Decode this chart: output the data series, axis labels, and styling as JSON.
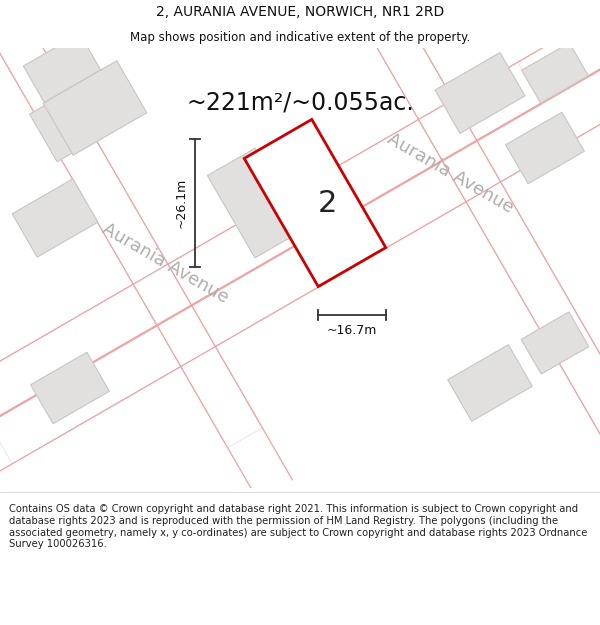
{
  "title": "2, AURANIA AVENUE, NORWICH, NR1 2RD",
  "subtitle": "Map shows position and indicative extent of the property.",
  "area_text": "~221m²/~0.055ac.",
  "property_number": "2",
  "dim_width": "~16.7m",
  "dim_height": "~26.1m",
  "street_label_1": "Aurania Avenue",
  "street_label_2": "Aurania Avenue",
  "footer_text": "Contains OS data © Crown copyright and database right 2021. This information is subject to Crown copyright and database rights 2023 and is reproduced with the permission of HM Land Registry. The polygons (including the associated geometry, namely x, y co-ordinates) are subject to Crown copyright and database rights 2023 Ordnance Survey 100026316.",
  "fig_width": 6.0,
  "fig_height": 6.25,
  "dpi": 100,
  "map_bg": "#f7f6f4",
  "header_bg": "#ffffff",
  "footer_bg": "#ffffff",
  "road_color": "#ffffff",
  "building_color": "#e2e0de",
  "building_edge_color": "#c8c6c4",
  "road_stripe_color": "#f0a0a0",
  "property_fill": "#ffffff",
  "property_edge": "#cc0000",
  "dim_color": "#333333",
  "street_label_color": "#b0aeac",
  "title_fontsize": 10,
  "subtitle_fontsize": 8.5,
  "area_fontsize": 17,
  "number_fontsize": 22,
  "dim_fontsize": 9,
  "street_fontsize": 13,
  "footer_fontsize": 7.2
}
